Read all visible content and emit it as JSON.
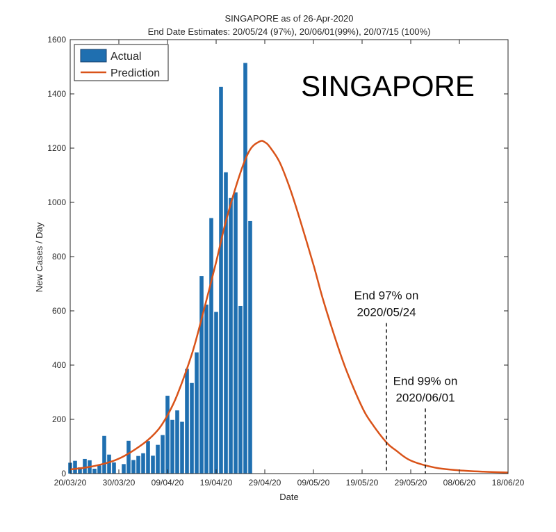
{
  "chart_data": {
    "type": "bar",
    "title": "SINGAPORE as of 26-Apr-2020",
    "subtitle": "End Date Estimates: 20/05/24 (97%), 20/06/01(99%), 20/07/15 (100%)",
    "xlabel": "Date",
    "ylabel": "New Cases / Day",
    "ylim": [
      0,
      1600
    ],
    "yticks": [
      0,
      200,
      400,
      600,
      800,
      1000,
      1200,
      1400,
      1600
    ],
    "x_day_range": [
      0,
      90
    ],
    "xtick_days": [
      0,
      10,
      20,
      30,
      40,
      50,
      60,
      70,
      80,
      90
    ],
    "xtick_labels": [
      "20/03/20",
      "30/03/20",
      "09/04/20",
      "19/04/20",
      "29/04/20",
      "09/05/20",
      "19/05/20",
      "29/05/20",
      "08/06/20",
      "18/06/20"
    ],
    "legend": {
      "placement": "top-left",
      "actual_label": "Actual",
      "prediction_label": "Prediction"
    },
    "watermark": "SINGAPORE",
    "series": [
      {
        "name": "Actual",
        "kind": "bar",
        "color": "#1f6fb0",
        "dates": [
          "20/03/20",
          "21/03/20",
          "22/03/20",
          "23/03/20",
          "24/03/20",
          "25/03/20",
          "26/03/20",
          "27/03/20",
          "28/03/20",
          "29/03/20",
          "30/03/20",
          "31/03/20",
          "01/04/20",
          "02/04/20",
          "03/04/20",
          "04/04/20",
          "05/04/20",
          "06/04/20",
          "07/04/20",
          "08/04/20",
          "09/04/20",
          "10/04/20",
          "11/04/20",
          "12/04/20",
          "13/04/20",
          "14/04/20",
          "15/04/20",
          "16/04/20",
          "17/04/20",
          "18/04/20",
          "19/04/20",
          "20/04/20",
          "21/04/20",
          "22/04/20",
          "23/04/20",
          "24/04/20",
          "25/04/20",
          "26/04/20"
        ],
        "values": [
          40,
          47,
          23,
          54,
          49,
          18,
          30,
          139,
          70,
          41,
          0,
          35,
          121,
          50,
          65,
          75,
          120,
          66,
          106,
          142,
          287,
          198,
          233,
          191,
          386,
          334,
          447,
          728,
          623,
          942,
          596,
          1426,
          1111,
          1016,
          1037,
          618,
          1514,
          931
        ]
      },
      {
        "name": "Prediction",
        "kind": "line",
        "color": "#d95319",
        "days": [
          0,
          5,
          10,
          15,
          18,
          20,
          22,
          25,
          27,
          30,
          32,
          35,
          37,
          39,
          40,
          41,
          43,
          45,
          47,
          50,
          52,
          55,
          57,
          60,
          62,
          65,
          67,
          70,
          75,
          80,
          85,
          90
        ],
        "values": [
          15,
          28,
          55,
          110,
          160,
          215,
          290,
          440,
          570,
          780,
          930,
          1110,
          1195,
          1225,
          1222,
          1205,
          1150,
          1060,
          950,
          770,
          640,
          470,
          370,
          245,
          185,
          115,
          85,
          48,
          22,
          12,
          7,
          4
        ]
      }
    ],
    "annotations": [
      {
        "text_line1": "End 97% on",
        "text_line2": "2020/05/24",
        "x_day": 65,
        "y_top": 555
      },
      {
        "text_line1": "End 99% on",
        "text_line2": "2020/06/01",
        "x_day": 73,
        "y_top": 240
      }
    ]
  }
}
